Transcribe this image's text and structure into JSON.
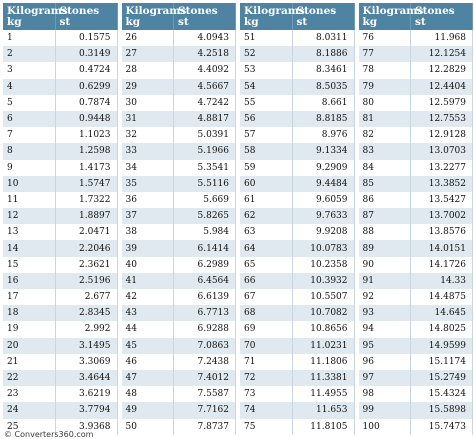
{
  "headers": {
    "kg_line1": "Kilograms",
    "kg_line2": "kg",
    "st_line1": "Stones",
    "st_line2": "st"
  },
  "blocks": [
    {
      "rows": [
        [
          "1",
          "0.1575"
        ],
        [
          "2",
          "0.3149"
        ],
        [
          "3",
          "0.4724"
        ],
        [
          "4",
          "0.6299"
        ],
        [
          "5",
          "0.7874"
        ],
        [
          "6",
          "0.9448"
        ],
        [
          "7",
          "1.1023"
        ],
        [
          "8",
          "1.2598"
        ],
        [
          "9",
          "1.4173"
        ],
        [
          "10",
          "1.5747"
        ],
        [
          "11",
          "1.7322"
        ],
        [
          "12",
          "1.8897"
        ],
        [
          "13",
          "2.0471"
        ],
        [
          "14",
          "2.2046"
        ],
        [
          "15",
          "2.3621"
        ],
        [
          "16",
          "2.5196"
        ],
        [
          "17",
          "2.677"
        ],
        [
          "18",
          "2.8345"
        ],
        [
          "19",
          "2.992"
        ],
        [
          "20",
          "3.1495"
        ],
        [
          "21",
          "3.3069"
        ],
        [
          "22",
          "3.4644"
        ],
        [
          "23",
          "3.6219"
        ],
        [
          "24",
          "3.7794"
        ],
        [
          "25",
          "3.9368"
        ]
      ]
    },
    {
      "rows": [
        [
          "26",
          "4.0943"
        ],
        [
          "27",
          "4.2518"
        ],
        [
          "28",
          "4.4092"
        ],
        [
          "29",
          "4.5667"
        ],
        [
          "30",
          "4.7242"
        ],
        [
          "31",
          "4.8817"
        ],
        [
          "32",
          "5.0391"
        ],
        [
          "33",
          "5.1966"
        ],
        [
          "34",
          "5.3541"
        ],
        [
          "35",
          "5.5116"
        ],
        [
          "36",
          "5.669"
        ],
        [
          "37",
          "5.8265"
        ],
        [
          "38",
          "5.984"
        ],
        [
          "39",
          "6.1414"
        ],
        [
          "40",
          "6.2989"
        ],
        [
          "41",
          "6.4564"
        ],
        [
          "42",
          "6.6139"
        ],
        [
          "43",
          "6.7713"
        ],
        [
          "44",
          "6.9288"
        ],
        [
          "45",
          "7.0863"
        ],
        [
          "46",
          "7.2438"
        ],
        [
          "47",
          "7.4012"
        ],
        [
          "48",
          "7.5587"
        ],
        [
          "49",
          "7.7162"
        ],
        [
          "50",
          "7.8737"
        ]
      ]
    },
    {
      "rows": [
        [
          "51",
          "8.0311"
        ],
        [
          "52",
          "8.1886"
        ],
        [
          "53",
          "8.3461"
        ],
        [
          "54",
          "8.5035"
        ],
        [
          "55",
          "8.661"
        ],
        [
          "56",
          "8.8185"
        ],
        [
          "57",
          "8.976"
        ],
        [
          "58",
          "9.1334"
        ],
        [
          "59",
          "9.2909"
        ],
        [
          "60",
          "9.4484"
        ],
        [
          "61",
          "9.6059"
        ],
        [
          "62",
          "9.7633"
        ],
        [
          "63",
          "9.9208"
        ],
        [
          "64",
          "10.0783"
        ],
        [
          "65",
          "10.2358"
        ],
        [
          "66",
          "10.3932"
        ],
        [
          "67",
          "10.5507"
        ],
        [
          "68",
          "10.7082"
        ],
        [
          "69",
          "10.8656"
        ],
        [
          "70",
          "11.0231"
        ],
        [
          "71",
          "11.1806"
        ],
        [
          "72",
          "11.3381"
        ],
        [
          "73",
          "11.4955"
        ],
        [
          "74",
          "11.653"
        ],
        [
          "75",
          "11.8105"
        ]
      ]
    },
    {
      "rows": [
        [
          "76",
          "11.968"
        ],
        [
          "77",
          "12.1254"
        ],
        [
          "78",
          "12.2829"
        ],
        [
          "79",
          "12.4404"
        ],
        [
          "80",
          "12.5979"
        ],
        [
          "81",
          "12.7553"
        ],
        [
          "82",
          "12.9128"
        ],
        [
          "83",
          "13.0703"
        ],
        [
          "84",
          "13.2277"
        ],
        [
          "85",
          "13.3852"
        ],
        [
          "86",
          "13.5427"
        ],
        [
          "87",
          "13.7002"
        ],
        [
          "88",
          "13.8576"
        ],
        [
          "89",
          "14.0151"
        ],
        [
          "90",
          "14.1726"
        ],
        [
          "91",
          "14.33"
        ],
        [
          "92",
          "14.4875"
        ],
        [
          "93",
          "14.645"
        ],
        [
          "94",
          "14.8025"
        ],
        [
          "95",
          "14.9599"
        ],
        [
          "96",
          "15.1174"
        ],
        [
          "97",
          "15.2749"
        ],
        [
          "98",
          "15.4324"
        ],
        [
          "99",
          "15.5898"
        ],
        [
          "100",
          "15.7473"
        ]
      ]
    }
  ],
  "footer": "© Converters360.com"
}
